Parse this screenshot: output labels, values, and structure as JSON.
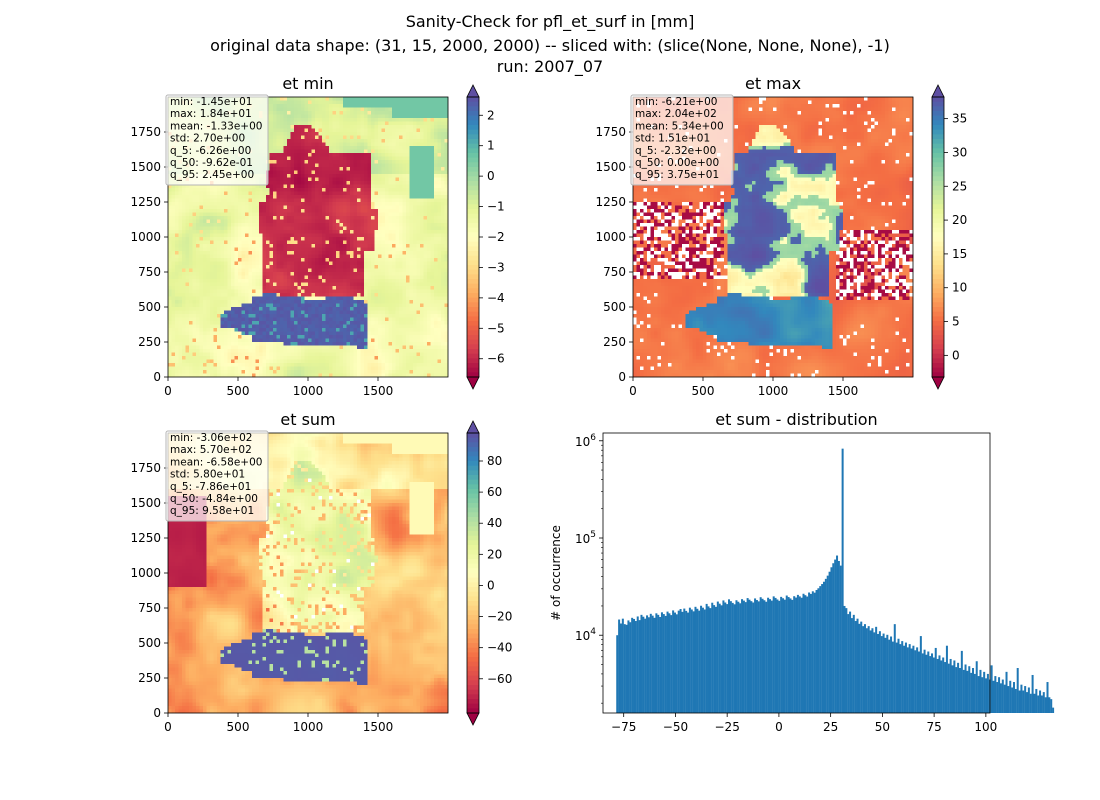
{
  "figure": {
    "title_lines": [
      "Sanity-Check for pfl_et_surf in [mm]",
      "original data shape: (31, 15, 2000, 2000) -- sliced with: (slice(None, None, None), -1)",
      "run: 2007_07"
    ]
  },
  "colormap": {
    "name": "Spectral",
    "stops": [
      "#9e0142",
      "#d53e4f",
      "#f46d43",
      "#fdae61",
      "#fee08b",
      "#ffffbf",
      "#e6f598",
      "#abdda4",
      "#66c2a5",
      "#3288bd",
      "#5e4fa2"
    ],
    "bad_color": "#ffffff"
  },
  "chart_data": [
    {
      "type": "heatmap",
      "title": "et min",
      "xlim": [
        0,
        2000
      ],
      "ylim": [
        0,
        2000
      ],
      "x_ticks": [
        0,
        500,
        1000,
        1500
      ],
      "y_ticks": [
        0,
        250,
        500,
        750,
        1000,
        1250,
        1500,
        1750
      ],
      "colorbar": {
        "min": -6.6,
        "max": 2.6,
        "ticks": [
          2,
          1,
          0,
          -1,
          -2,
          -3,
          -4,
          -5,
          -6
        ],
        "tick_labels": [
          "2",
          "1",
          "0",
          "−1",
          "−2",
          "−3",
          "−4",
          "−5",
          "−6"
        ],
        "extend": "both"
      },
      "stats": [
        "min: -1.45e+01",
        "max: 1.84e+01",
        "mean: -1.33e+00",
        "std: 2.70e+00",
        "q_5: -6.26e+00",
        "q_50: -9.62e-01",
        "q_95: 2.45e+00"
      ]
    },
    {
      "type": "heatmap",
      "title": "et max",
      "xlim": [
        0,
        2000
      ],
      "ylim": [
        0,
        2000
      ],
      "x_ticks": [
        0,
        500,
        1000,
        1500
      ],
      "y_ticks": [
        0,
        250,
        500,
        750,
        1000,
        1250,
        1500,
        1750
      ],
      "colorbar": {
        "min": -3.2,
        "max": 38.2,
        "ticks": [
          35,
          30,
          25,
          20,
          15,
          10,
          5,
          0
        ],
        "tick_labels": [
          "35",
          "30",
          "25",
          "20",
          "15",
          "10",
          "5",
          "0"
        ],
        "extend": "both"
      },
      "stats": [
        "min: -6.21e+00",
        "max: 2.04e+02",
        "mean: 5.34e+00",
        "std: 1.51e+01",
        "q_5: -2.32e+00",
        "q_50: 0.00e+00",
        "q_95: 3.75e+01"
      ]
    },
    {
      "type": "heatmap",
      "title": "et sum",
      "xlim": [
        0,
        2000
      ],
      "ylim": [
        0,
        2000
      ],
      "x_ticks": [
        0,
        500,
        1000,
        1500
      ],
      "y_ticks": [
        0,
        250,
        500,
        750,
        1000,
        1250,
        1500,
        1750
      ],
      "colorbar": {
        "min": -82,
        "max": 98,
        "ticks": [
          80,
          60,
          40,
          20,
          0,
          -20,
          -40,
          -60
        ],
        "tick_labels": [
          "80",
          "60",
          "40",
          "20",
          "0",
          "−20",
          "−40",
          "−60"
        ],
        "extend": "both"
      },
      "stats": [
        "min: -3.06e+02",
        "max: 5.70e+02",
        "mean: -6.58e+00",
        "std: 5.80e+01",
        "q_5: -7.86e+01",
        "q_50: -4.84e+00",
        "q_95: 9.58e+01"
      ]
    },
    {
      "type": "bar",
      "title": "et sum - distribution",
      "xlabel": "",
      "ylabel": "# of occurrence",
      "xlim": [
        -85,
        102
      ],
      "ylim_log10": [
        3.2,
        6.08
      ],
      "y_scale": "log",
      "x_ticks": [
        -75,
        -50,
        -25,
        0,
        25,
        50,
        75,
        100
      ],
      "x_tick_labels": [
        "−75",
        "−50",
        "−25",
        "0",
        "25",
        "50",
        "75",
        "100"
      ],
      "y_ticks": [
        10000.0,
        100000.0,
        1000000.0
      ],
      "y_tick_labels": [
        "10^4",
        "10^5",
        "10^6"
      ],
      "bar_color": "#1f77b4",
      "bin_start": -78.6,
      "bin_width": 0.9,
      "counts": [
        10000,
        14500,
        13200,
        14800,
        13000,
        12800,
        14200,
        13600,
        15100,
        14700,
        14000,
        15600,
        14300,
        16200,
        15500,
        14800,
        16000,
        15300,
        16600,
        15900,
        15100,
        16800,
        16200,
        15400,
        17200,
        16500,
        15800,
        17500,
        16800,
        16100,
        18000,
        17100,
        16400,
        17900,
        18600,
        17400,
        18800,
        17800,
        17100,
        19200,
        18400,
        17600,
        19600,
        18700,
        17900,
        20100,
        19200,
        18400,
        21000,
        19800,
        19000,
        21600,
        20400,
        19600,
        22200,
        21100,
        20300,
        22800,
        21700,
        20900,
        23400,
        22400,
        21500,
        20800,
        22900,
        22100,
        21300,
        23500,
        22700,
        21900,
        24100,
        23200,
        22400,
        21700,
        23900,
        23000,
        22300,
        24600,
        23700,
        22900,
        22100,
        24300,
        23500,
        22700,
        25100,
        24200,
        23300,
        22600,
        24800,
        24000,
        23200,
        25600,
        24700,
        23900,
        23100,
        25200,
        24400,
        26000,
        25100,
        24300,
        26700,
        25800,
        25000,
        27500,
        26600,
        28300,
        27400,
        29200,
        30400,
        32000,
        33600,
        35500,
        38000,
        41000,
        45000,
        50000,
        55000,
        60000,
        66000,
        58000,
        52000,
        830000,
        20000,
        19000,
        16500,
        17500,
        15000,
        16200,
        14000,
        14800,
        13100,
        13800,
        12400,
        13000,
        11800,
        12400,
        11200,
        11800,
        10700,
        12200,
        10300,
        11000,
        9800,
        10400,
        9400,
        10100,
        9000,
        9700,
        8600,
        13000,
        8400,
        9200,
        8100,
        8700,
        7800,
        8400,
        7500,
        8100,
        7300,
        7800,
        7000,
        7500,
        6800,
        9800,
        6500,
        7100,
        6300,
        6800,
        6100,
        6500,
        5900,
        7400,
        5700,
        6200,
        5500,
        5900,
        5300,
        7800,
        5100,
        5700,
        4900,
        5500,
        4700,
        5200,
        4600,
        6900,
        4400,
        5000,
        4300,
        4800,
        4100,
        4600,
        4000,
        5400,
        3800,
        4400,
        3700,
        4200,
        3600,
        4000,
        3500,
        4900,
        3400,
        3800,
        3300,
        3700,
        3200,
        3500,
        3100,
        4200,
        3000,
        3400,
        2900,
        3300,
        2800,
        4600,
        2700,
        3100,
        2700,
        3000,
        2600,
        2900,
        2500,
        3900,
        2500,
        2800,
        2400,
        2700,
        2400,
        2600,
        2300,
        3300,
        2300,
        2200,
        1800
      ]
    }
  ]
}
